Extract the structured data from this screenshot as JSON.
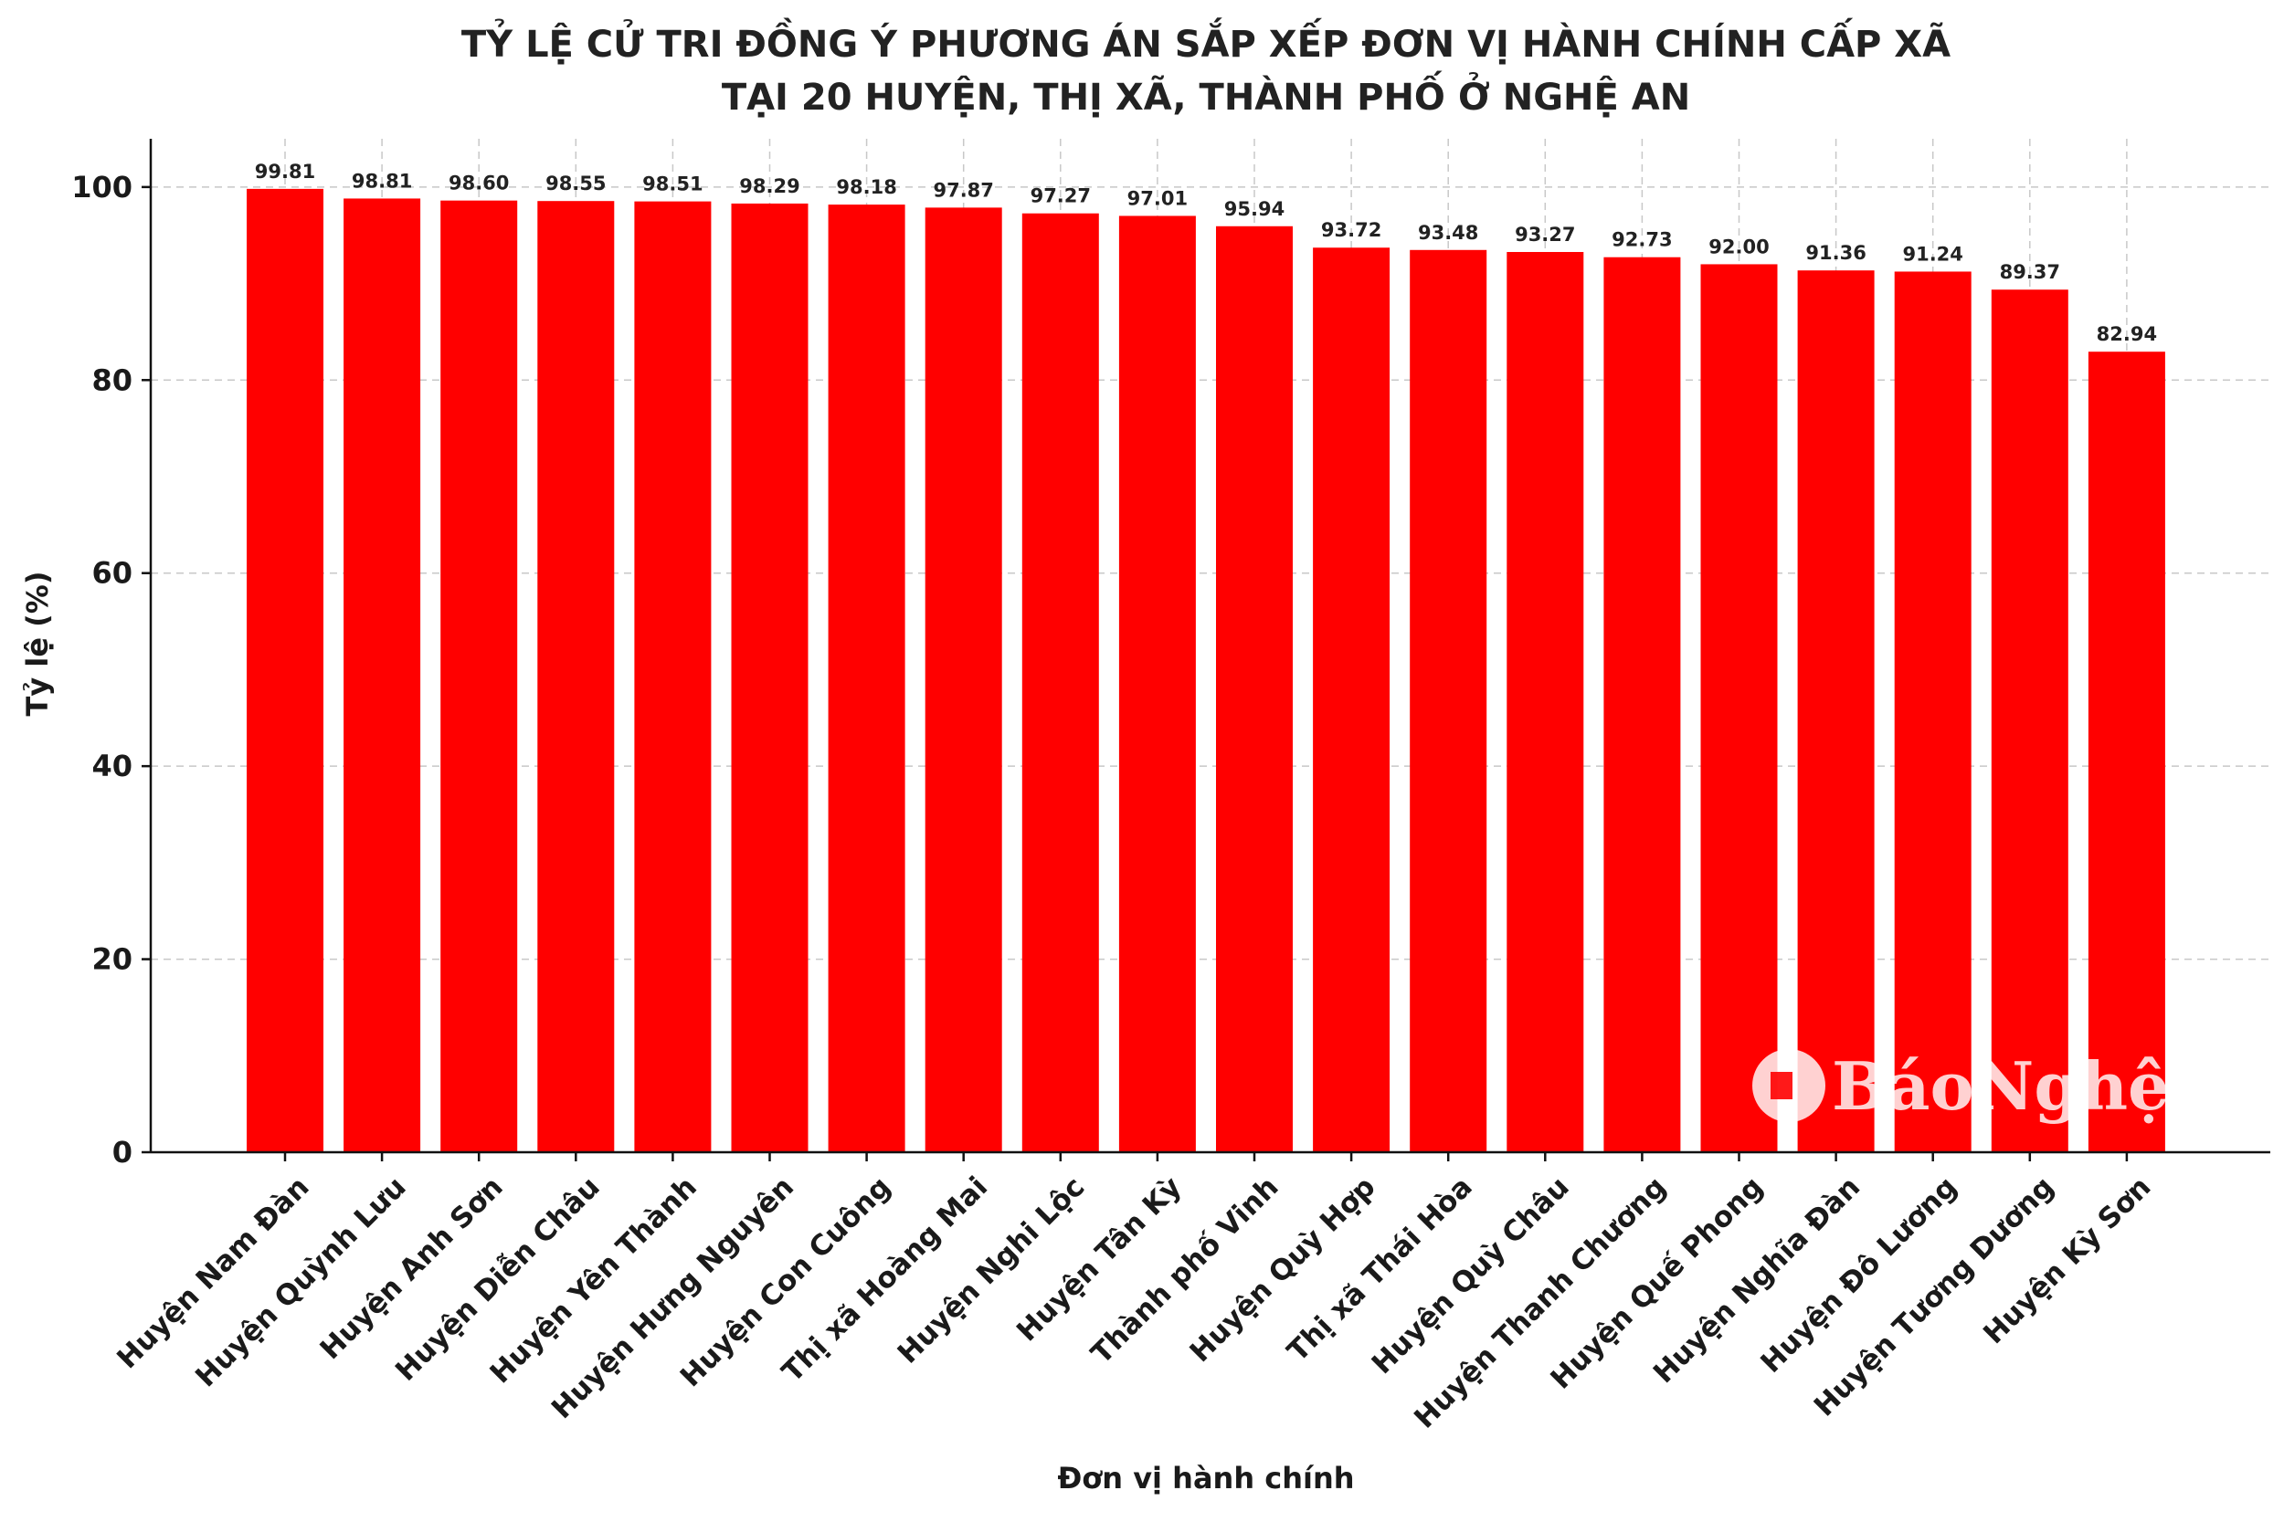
{
  "chart_data": {
    "type": "bar",
    "title": "TỶ LỆ CỬ TRI ĐỒNG Ý PHƯƠNG ÁN SẮP XẾP ĐƠN VỊ HÀNH CHÍNH CẤP XÃ",
    "subtitle": "TẠI 20 HUYỆN, THỊ XÃ, THÀNH PHỐ Ở NGHỆ AN",
    "xlabel": "Đơn vị hành chính",
    "ylabel": "Tỷ lệ (%)",
    "ylim": [
      0,
      105
    ],
    "yticks": [
      0,
      20,
      40,
      60,
      80,
      100
    ],
    "grid": true,
    "bar_color": "#ff0000",
    "categories": [
      "Huyện Nam Đàn",
      "Huyện Quỳnh Lưu",
      "Huyện Anh Sơn",
      "Huyện Diễn Châu",
      "Huyện Yên Thành",
      "Huyện Hưng Nguyên",
      "Huyện Con Cuông",
      "Thị xã Hoàng Mai",
      "Huyện Nghi Lộc",
      "Huyện Tân Kỳ",
      "Thành phố Vinh",
      "Huyện Quỳ Hợp",
      "Thị xã Thái Hòa",
      "Huyện Quỳ Châu",
      "Huyện Thanh Chương",
      "Huyện Quế Phong",
      "Huyện Nghĩa Đàn",
      "Huyện Đô Lương",
      "Huyện Tương Dương",
      "Huyện Kỳ Sơn"
    ],
    "values": [
      99.81,
      98.81,
      98.6,
      98.55,
      98.51,
      98.29,
      98.18,
      97.87,
      97.27,
      97.01,
      95.94,
      93.72,
      93.48,
      93.27,
      92.73,
      92.0,
      91.36,
      91.24,
      89.37,
      82.94
    ],
    "value_labels": [
      "99.81",
      "98.81",
      "98.60",
      "98.55",
      "98.51",
      "98.29",
      "98.18",
      "97.87",
      "97.27",
      "97.01",
      "95.94",
      "93.72",
      "93.48",
      "93.27",
      "92.73",
      "92.00",
      "91.36",
      "91.24",
      "89.37",
      "82.94"
    ]
  },
  "watermark": {
    "text": "BáoNghệAn",
    "icon": "newspaper-logo-icon"
  }
}
